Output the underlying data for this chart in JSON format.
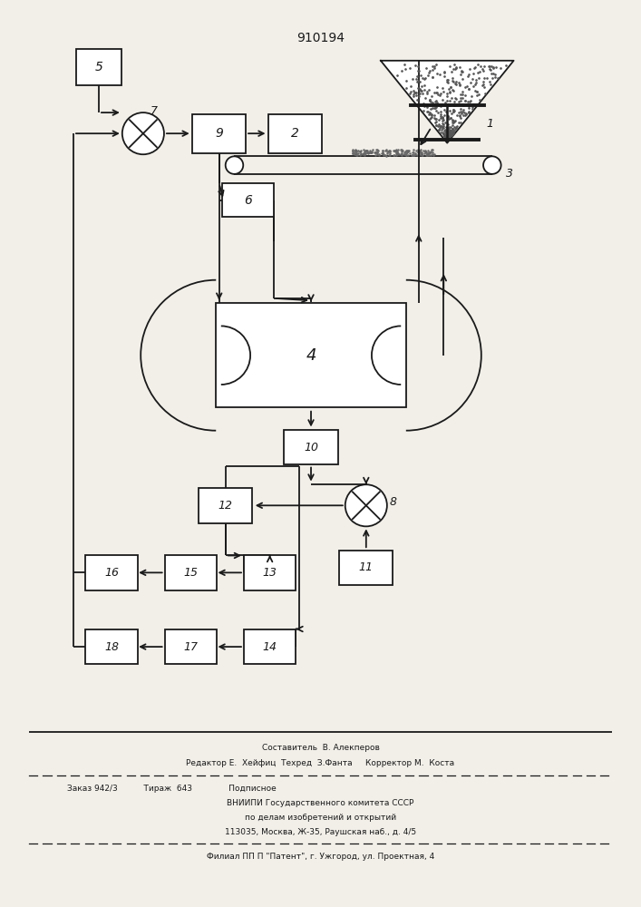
{
  "title": "910194",
  "bg_color": "#f2efe9",
  "line_color": "#1a1a1a",
  "figsize": [
    7.07,
    10.0
  ],
  "dpi": 100,
  "footer_lines": [
    "Составитель  В. Алекперов",
    "Редактор Е.  Хейфиц  Техред  З.Фанта     Корректор М.  Коста",
    "Заказ 942/3          Тираж  643              Подписное",
    "ВНИИПИ Государственного комитета СССР",
    "по делам изобретений и открытий",
    "113035, Москва, Ж-35, Раушская наб., д. 4/5",
    "Филиал ПП П \"Патент\", г. Ужгород, ул. Проектная, 4"
  ]
}
